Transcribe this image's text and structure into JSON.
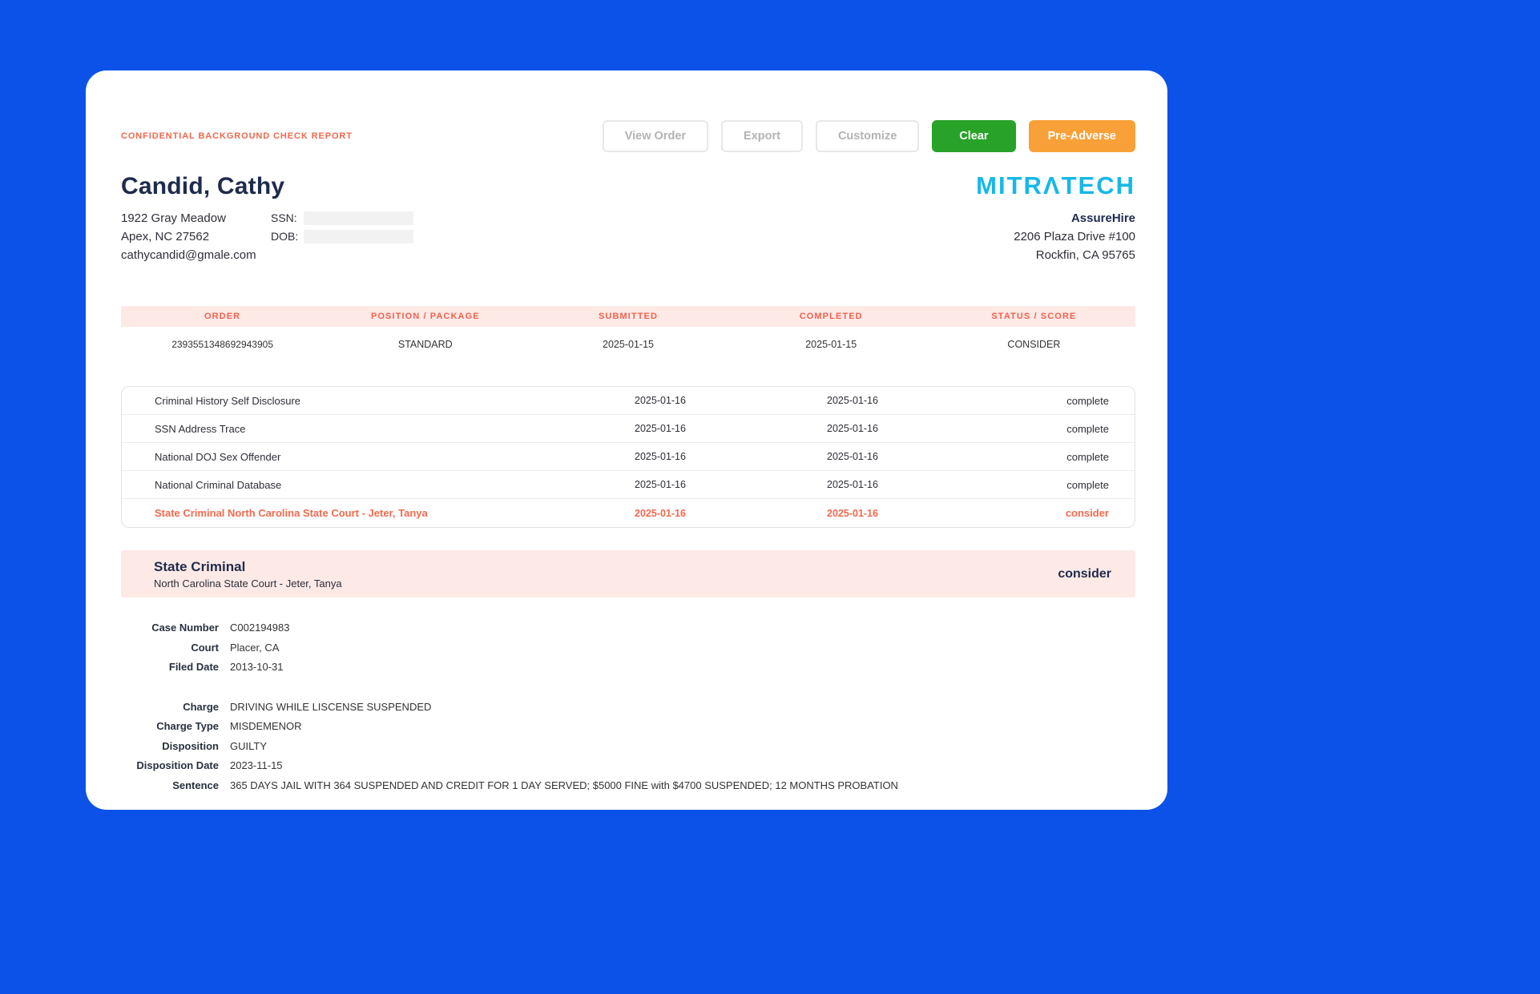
{
  "colors": {
    "page_background": "#0c52e8",
    "accent_coral": "#f4604d",
    "pink_band": "#fdeae7",
    "green_button": "#28a228",
    "orange_button": "#f9a138",
    "logo_cyan": "#16b8e8",
    "navy_text": "#1e2b4c"
  },
  "header": {
    "confidential_label": "CONFIDENTIAL BACKGROUND CHECK REPORT",
    "buttons": {
      "view_order": "View Order",
      "export": "Export",
      "customize": "Customize",
      "clear": "Clear",
      "pre_adverse": "Pre-Adverse"
    }
  },
  "subject": {
    "name": "Candid, Cathy",
    "address_line1": "1922 Gray Meadow",
    "address_line2": "Apex, NC 27562",
    "email": "cathycandid@gmale.com",
    "ssn_label": "SSN:",
    "dob_label": "DOB:"
  },
  "provider": {
    "logo_text": "MITRΛTECH",
    "company": "AssureHire",
    "address_line1": "2206 Plaza Drive #100",
    "address_line2": "Rockfin, CA 95765"
  },
  "order_table": {
    "headers": {
      "order": "ORDER",
      "position": "POSITION / PACKAGE",
      "submitted": "SUBMITTED",
      "completed": "COMPLETED",
      "status": "STATUS / SCORE"
    },
    "row": {
      "order": "2393551348692943905",
      "position": "STANDARD",
      "submitted": "2025-01-15",
      "completed": "2025-01-15",
      "status": "CONSIDER"
    }
  },
  "checks": [
    {
      "name": "Criminal History Self Disclosure",
      "submitted": "2025-01-16",
      "completed": "2025-01-16",
      "status": "complete",
      "flagged": false
    },
    {
      "name": "SSN Address Trace",
      "submitted": "2025-01-16",
      "completed": "2025-01-16",
      "status": "complete",
      "flagged": false
    },
    {
      "name": "National DOJ Sex Offender",
      "submitted": "2025-01-16",
      "completed": "2025-01-16",
      "status": "complete",
      "flagged": false
    },
    {
      "name": "National Criminal Database",
      "submitted": "2025-01-16",
      "completed": "2025-01-16",
      "status": "complete",
      "flagged": false
    },
    {
      "name": "State Criminal North Carolina State Court - Jeter, Tanya",
      "submitted": "2025-01-16",
      "completed": "2025-01-16",
      "status": "consider",
      "flagged": true
    }
  ],
  "state_criminal_section": {
    "title": "State Criminal",
    "subtitle": "North Carolina State Court - Jeter, Tanya",
    "status": "consider",
    "case_fields": [
      {
        "label": "Case Number",
        "value": "C002194983"
      },
      {
        "label": "Court",
        "value": "Placer, CA"
      },
      {
        "label": "Filed Date",
        "value": "2013-10-31"
      }
    ],
    "charge_fields": [
      {
        "label": "Charge",
        "value": "DRIVING WHILE LISCENSE SUSPENDED"
      },
      {
        "label": "Charge Type",
        "value": "MISDEMENOR"
      },
      {
        "label": "Disposition",
        "value": "GUILTY"
      },
      {
        "label": "Disposition Date",
        "value": "2023-11-15"
      },
      {
        "label": "Sentence",
        "value": "365 DAYS JAIL WITH 364 SUSPENDED AND CREDIT FOR 1 DAY SERVED; $5000 FINE with $4700 SUSPENDED; 12 MONTHS PROBATION"
      }
    ]
  }
}
